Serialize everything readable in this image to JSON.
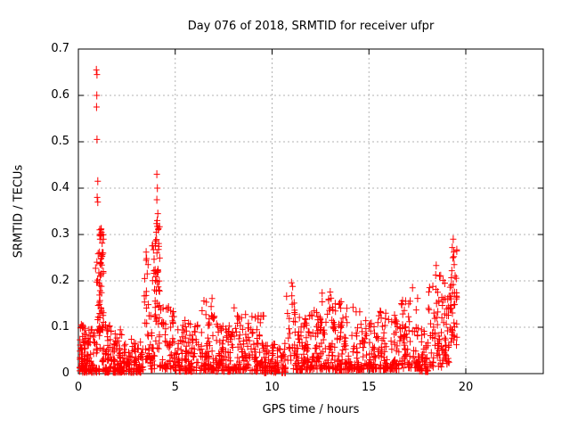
{
  "colors": {
    "background": "#ffffff",
    "marker": "#ff0000",
    "grid": "#b3b3b3",
    "border": "#000000",
    "text": "#000000"
  },
  "chart_data": {
    "type": "scatter",
    "title": "Day 076 of 2018, SRMTID for receiver ufpr",
    "xlabel": "GPS time / hours",
    "ylabel": "SRMTID / TECUs",
    "xlim": [
      0,
      24
    ],
    "ylim": [
      0,
      0.7
    ],
    "x_ticks": [
      {
        "v": 0,
        "label": "0"
      },
      {
        "v": 5,
        "label": "5"
      },
      {
        "v": 10,
        "label": "10"
      },
      {
        "v": 15,
        "label": "15"
      },
      {
        "v": 20,
        "label": "20"
      }
    ],
    "y_ticks": [
      {
        "v": 0,
        "label": "0"
      },
      {
        "v": 0.1,
        "label": "0.1"
      },
      {
        "v": 0.2,
        "label": "0.2"
      },
      {
        "v": 0.3,
        "label": "0.3"
      },
      {
        "v": 0.4,
        "label": "0.4"
      },
      {
        "v": 0.5,
        "label": "0.5"
      },
      {
        "v": 0.6,
        "label": "0.6"
      },
      {
        "v": 0.7,
        "label": "0.7"
      }
    ],
    "grid": {
      "horizontal_at": [
        0.1,
        0.2,
        0.3,
        0.4,
        0.5,
        0.6
      ],
      "vertical_at": [
        5,
        10,
        15,
        20
      ],
      "style": "dotted"
    },
    "legend": "none",
    "marker": {
      "shape": "plus",
      "color": "#ff0000",
      "arm_h": 3.5,
      "arm_v": 4.5
    },
    "data_extent_hours": [
      0.05,
      19.55
    ],
    "peak_points": [
      [
        0.93,
        0.655
      ],
      [
        0.96,
        0.645
      ],
      [
        0.95,
        0.6
      ],
      [
        0.94,
        0.575
      ],
      [
        0.96,
        0.505
      ],
      [
        1.0,
        0.415
      ],
      [
        0.97,
        0.38
      ],
      [
        1.0,
        0.37
      ],
      [
        1.1,
        0.31
      ],
      [
        1.13,
        0.3
      ],
      [
        4.05,
        0.43
      ],
      [
        4.08,
        0.4
      ],
      [
        4.05,
        0.375
      ],
      [
        4.1,
        0.345
      ],
      [
        4.07,
        0.33
      ],
      [
        4.02,
        0.305
      ],
      [
        19.35,
        0.29
      ],
      [
        19.3,
        0.272
      ],
      [
        19.38,
        0.262
      ],
      [
        19.33,
        0.25
      ],
      [
        19.4,
        0.235
      ],
      [
        19.28,
        0.222
      ],
      [
        19.45,
        0.21
      ],
      [
        0.15,
        0.105
      ],
      [
        0.26,
        0.102
      ],
      [
        11.0,
        0.196
      ],
      [
        11.06,
        0.188
      ],
      [
        13.0,
        0.176
      ],
      [
        6.9,
        0.162
      ],
      [
        17.25,
        0.185
      ],
      [
        3.5,
        0.262
      ],
      [
        3.52,
        0.248
      ]
    ],
    "square_points": [
      [
        0.16,
        0.008
      ],
      [
        10.3,
        0.005
      ]
    ],
    "bands_schema": "[x_start_h, x_end_h, n_points, y_min, y_max, low_bias_exponent]",
    "bands": [
      [
        0.05,
        0.35,
        40,
        0.004,
        0.11,
        2.2
      ],
      [
        0.3,
        0.95,
        75,
        0.004,
        0.095,
        2.2
      ],
      [
        0.88,
        1.05,
        14,
        0.05,
        0.26,
        1.4
      ],
      [
        1.05,
        1.3,
        55,
        0.085,
        0.315,
        1.0
      ],
      [
        1.05,
        1.4,
        25,
        0.004,
        0.1,
        2.0
      ],
      [
        1.4,
        2.25,
        95,
        0.004,
        0.105,
        2.4
      ],
      [
        2.25,
        3.35,
        90,
        0.004,
        0.075,
        2.2
      ],
      [
        3.4,
        3.65,
        22,
        0.03,
        0.265,
        1.3
      ],
      [
        3.65,
        3.95,
        25,
        0.01,
        0.13,
        1.8
      ],
      [
        3.8,
        4.0,
        12,
        0.18,
        0.285,
        1.0
      ],
      [
        3.95,
        4.2,
        40,
        0.05,
        0.34,
        1.2
      ],
      [
        4.2,
        5.0,
        60,
        0.01,
        0.145,
        2.2
      ],
      [
        5.0,
        6.3,
        100,
        0.006,
        0.115,
        2.3
      ],
      [
        6.3,
        7.1,
        70,
        0.008,
        0.165,
        2.3
      ],
      [
        7.1,
        8.0,
        80,
        0.006,
        0.11,
        2.3
      ],
      [
        8.0,
        8.7,
        60,
        0.008,
        0.145,
        2.2
      ],
      [
        8.7,
        9.6,
        70,
        0.006,
        0.125,
        2.4
      ],
      [
        9.6,
        10.7,
        80,
        0.003,
        0.065,
        2.2
      ],
      [
        10.7,
        11.25,
        30,
        0.01,
        0.195,
        1.8
      ],
      [
        11.25,
        12.0,
        70,
        0.008,
        0.125,
        2.3
      ],
      [
        12.0,
        12.5,
        45,
        0.01,
        0.155,
        2.0
      ],
      [
        12.5,
        13.25,
        65,
        0.01,
        0.175,
        2.2
      ],
      [
        13.25,
        14.6,
        110,
        0.008,
        0.155,
        2.3
      ],
      [
        14.6,
        15.3,
        60,
        0.01,
        0.125,
        2.2
      ],
      [
        15.3,
        16.6,
        100,
        0.01,
        0.135,
        2.3
      ],
      [
        16.6,
        17.6,
        80,
        0.012,
        0.17,
        2.2
      ],
      [
        17.6,
        18.05,
        35,
        0.005,
        0.1,
        2.0
      ],
      [
        18.05,
        18.75,
        55,
        0.015,
        0.235,
        1.9
      ],
      [
        18.75,
        19.15,
        40,
        0.02,
        0.215,
        1.8
      ],
      [
        19.15,
        19.55,
        38,
        0.06,
        0.295,
        1.3
      ]
    ],
    "seed": 76
  }
}
